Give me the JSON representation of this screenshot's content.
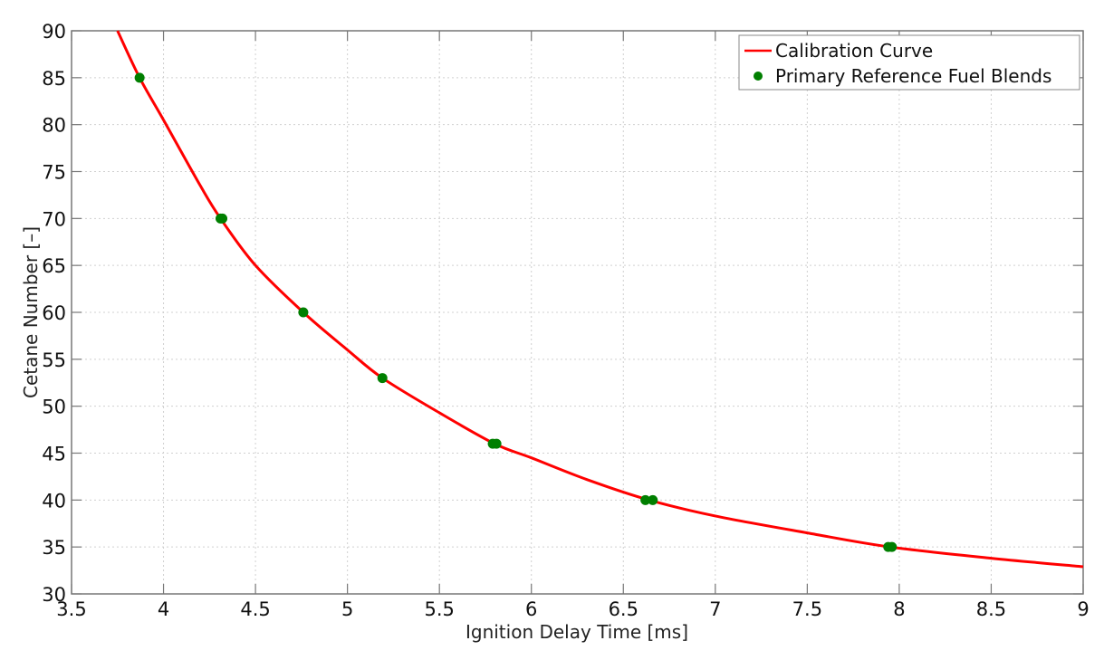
{
  "chart_data": {
    "type": "line",
    "title": "",
    "xlabel": "Ignition Delay Time [ms]",
    "ylabel": "Cetane Number [–]",
    "xlim": [
      3.5,
      9
    ],
    "ylim": [
      30,
      90
    ],
    "xticks": [
      3.5,
      4,
      4.5,
      5,
      5.5,
      6,
      6.5,
      7,
      7.5,
      8,
      8.5,
      9
    ],
    "yticks": [
      30,
      35,
      40,
      45,
      50,
      55,
      60,
      65,
      70,
      75,
      80,
      85,
      90
    ],
    "grid": true,
    "legend_position": "upper right",
    "series": [
      {
        "name": "Calibration Curve",
        "kind": "line",
        "color": "#ff0000",
        "x": [
          3.75,
          3.87,
          4.0,
          4.2,
          4.31,
          4.5,
          4.76,
          5.0,
          5.19,
          5.5,
          5.8,
          6.0,
          6.3,
          6.64,
          7.0,
          7.5,
          7.95,
          8.5,
          9.0
        ],
        "y": [
          90,
          85,
          80.5,
          73.5,
          70,
          65,
          60,
          56,
          53,
          49.3,
          46,
          44.5,
          42.2,
          40,
          38.3,
          36.5,
          35,
          33.8,
          32.9
        ]
      },
      {
        "name": "Primary Reference Fuel Blends",
        "kind": "scatter",
        "color": "#007f00",
        "x": [
          3.87,
          4.31,
          4.32,
          4.76,
          5.19,
          5.79,
          5.81,
          6.62,
          6.66,
          7.94,
          7.96
        ],
        "y": [
          85,
          70,
          70,
          60,
          53,
          46,
          46,
          40,
          40,
          35,
          35
        ]
      }
    ]
  },
  "legend": {
    "items": [
      {
        "label": "Calibration Curve"
      },
      {
        "label": "Primary Reference Fuel Blends"
      }
    ]
  }
}
